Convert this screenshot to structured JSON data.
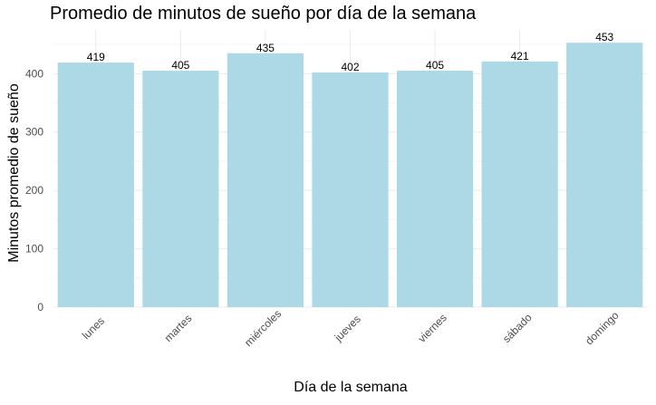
{
  "chart_data": {
    "type": "bar",
    "title": "Promedio de minutos de sueño por día de la semana",
    "xlabel": "Día de la semana",
    "ylabel": "Minutos promedio de sueño",
    "categories": [
      "lunes",
      "martes",
      "miércoles",
      "jueves",
      "viernes",
      "sábado",
      "domingo"
    ],
    "values": [
      419,
      405,
      435,
      402,
      405,
      421,
      453
    ],
    "data_labels": [
      "419",
      "405",
      "435",
      "402",
      "405",
      "421",
      "453"
    ],
    "ylim": [
      0,
      475
    ],
    "y_ticks": [
      0,
      100,
      200,
      300,
      400
    ],
    "y_tick_labels": [
      "0",
      "100",
      "200",
      "300",
      "400"
    ],
    "x_tick_rotation_deg": 45,
    "grid": true,
    "legend": "none",
    "colors": {
      "bar": "#add8e6",
      "grid_major": "#ebebeb",
      "grid_minor": "#f5f5f5",
      "tick_text": "#4d4d4d",
      "label_text": "#000000"
    }
  }
}
